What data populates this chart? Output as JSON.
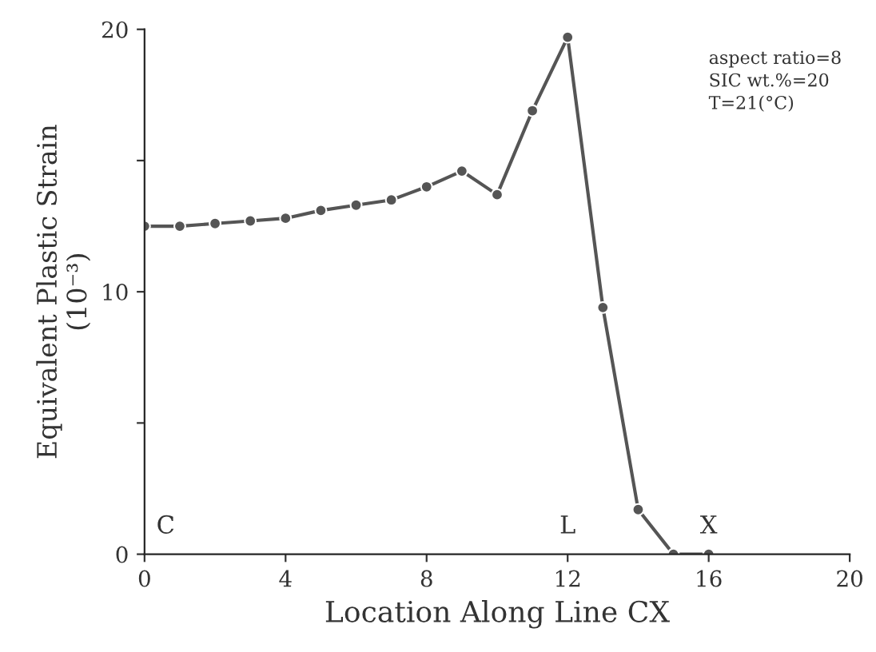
{
  "chart_data": {
    "type": "line",
    "xlabel": "Location Along Line CX",
    "ylabel": "Equivalent Plastic Strain\n(10⁻³)",
    "x": [
      0,
      1,
      2,
      3,
      4,
      5,
      6,
      7,
      8,
      9,
      10,
      11,
      12,
      13,
      14,
      15,
      16
    ],
    "series": [
      {
        "color": "#555555",
        "values": [
          12.5,
          12.5,
          12.6,
          12.7,
          12.8,
          13.1,
          13.3,
          13.5,
          14.0,
          14.6,
          13.7,
          16.9,
          19.7,
          9.4,
          1.7,
          0,
          0
        ]
      }
    ],
    "xlim": [
      0,
      20
    ],
    "ylim": [
      0,
      20
    ],
    "xticks": [
      0,
      4,
      8,
      12,
      16,
      20
    ],
    "yticks": [
      0,
      {
        "value": 5,
        "label": null
      },
      10,
      {
        "value": 15,
        "label": null
      },
      20
    ],
    "marker": "circle",
    "line_style": "solid",
    "grid": false,
    "legend": false,
    "annotations": [
      "aspect ratio=8\nSIC wt.%=20\nT=21(°C)",
      "C",
      "L",
      "X"
    ]
  }
}
